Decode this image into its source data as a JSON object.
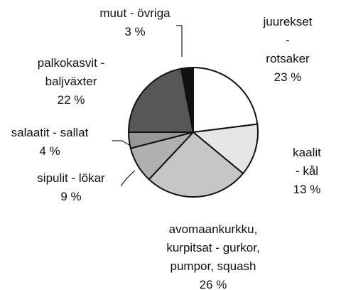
{
  "chart_data": {
    "type": "pie",
    "categories": [
      "juurekset -\nrotsaker",
      "kaalit - kål",
      "avomaankurkku,\nkurpitsat - gurkor,\npumpor, squash",
      "sipulit - lökar",
      "salaatit - sallat",
      "palkokasvit -\nbaljväxter",
      "muut - övriga"
    ],
    "values": [
      23,
      13,
      26,
      9,
      4,
      22,
      3
    ],
    "value_labels": [
      "23 %",
      "13 %",
      "26 %",
      "9 %",
      "4 %",
      "22 %",
      "3 %"
    ],
    "colors": [
      "#ffffff",
      "#e6e6e6",
      "#c6c6c6",
      "#b0b0b0",
      "#979797",
      "#575757",
      "#111111"
    ]
  }
}
